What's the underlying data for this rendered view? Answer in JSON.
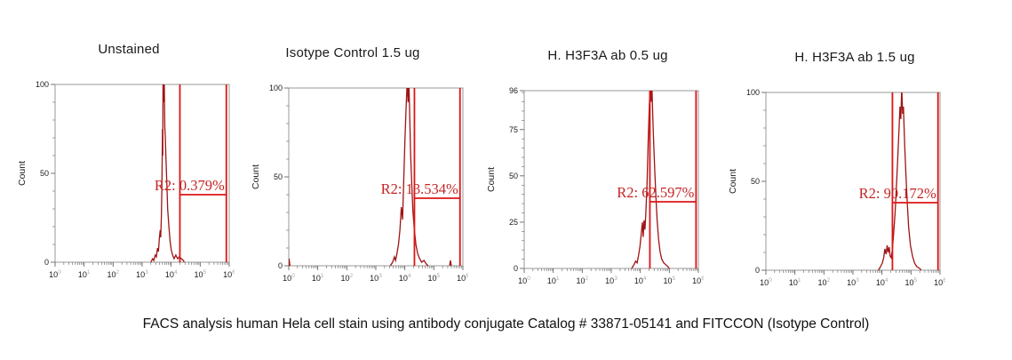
{
  "caption": "FACS analysis human Hela cell stain using antibody conjugate Catalog # 33871-05141 and FITCCON (Isotype Control)",
  "colors": {
    "curve": "#9e1414",
    "gate": "#dd1515",
    "gate_label": "#c62424",
    "frame": "#999999",
    "tick": "#666666",
    "tick_label": "#1a1a1a",
    "exponent": "#aaaaaa"
  },
  "chart_data": [
    {
      "type": "area",
      "title": "Unstained",
      "ylabel": "Count",
      "xscale": "log10",
      "xlim_exponents": [
        0,
        6
      ],
      "x_tick_exponents": [
        0,
        1,
        2,
        3,
        4,
        5,
        6
      ],
      "ylim": [
        0,
        100
      ],
      "yticks": [
        0,
        50,
        100
      ],
      "y_minor_step": 10,
      "grid": false,
      "segments": [
        [
          [
            3.3,
            0
          ],
          [
            3.36,
            2
          ],
          [
            3.4,
            1
          ],
          [
            3.45,
            4
          ],
          [
            3.49,
            3
          ],
          [
            3.53,
            8
          ],
          [
            3.56,
            6
          ],
          [
            3.59,
            13
          ],
          [
            3.62,
            18
          ],
          [
            3.64,
            14
          ],
          [
            3.66,
            25
          ],
          [
            3.68,
            42
          ],
          [
            3.7,
            75
          ],
          [
            3.71,
            60
          ],
          [
            3.72,
            104
          ],
          [
            3.74,
            90
          ],
          [
            3.76,
            104
          ],
          [
            3.78,
            76
          ],
          [
            3.8,
            70
          ],
          [
            3.82,
            58
          ],
          [
            3.85,
            44
          ],
          [
            3.88,
            30
          ],
          [
            3.92,
            20
          ],
          [
            3.96,
            12
          ],
          [
            4.0,
            7
          ],
          [
            4.05,
            4
          ],
          [
            4.1,
            2
          ],
          [
            4.16,
            4
          ],
          [
            4.22,
            2
          ],
          [
            4.28,
            3
          ],
          [
            4.35,
            2
          ],
          [
            4.42,
            1
          ],
          [
            4.45,
            0
          ]
        ]
      ],
      "gate": {
        "name": "R2",
        "label": "R2: 0.379%",
        "percent": 0.379,
        "x_from_exp": 4.3,
        "x_to_exp": 5.9,
        "line_y": 38
      }
    },
    {
      "type": "area",
      "title": "Isotype Control 1.5 ug",
      "ylabel": "Count",
      "xscale": "log10",
      "xlim_exponents": [
        0,
        6
      ],
      "x_tick_exponents": [
        0,
        1,
        2,
        3,
        4,
        5,
        6
      ],
      "ylim": [
        0,
        100
      ],
      "yticks": [
        0,
        50,
        100
      ],
      "y_minor_step": 10,
      "grid": false,
      "segments": [
        [
          [
            0.0,
            0
          ],
          [
            0.01,
            4
          ],
          [
            0.04,
            0
          ]
        ],
        [
          [
            3.5,
            0
          ],
          [
            3.58,
            2
          ],
          [
            3.64,
            5
          ],
          [
            3.68,
            3
          ],
          [
            3.73,
            7
          ],
          [
            3.78,
            12
          ],
          [
            3.83,
            20
          ],
          [
            3.88,
            33
          ],
          [
            3.92,
            26
          ],
          [
            3.96,
            48
          ],
          [
            4.0,
            70
          ],
          [
            4.04,
            88
          ],
          [
            4.08,
            104
          ],
          [
            4.11,
            92
          ],
          [
            4.14,
            104
          ],
          [
            4.17,
            83
          ],
          [
            4.2,
            62
          ],
          [
            4.24,
            45
          ],
          [
            4.28,
            30
          ],
          [
            4.33,
            20
          ],
          [
            4.38,
            12
          ],
          [
            4.44,
            7
          ],
          [
            4.51,
            4
          ],
          [
            4.58,
            2
          ],
          [
            4.66,
            3
          ],
          [
            4.74,
            1
          ],
          [
            4.8,
            0
          ]
        ],
        [
          [
            5.54,
            0
          ],
          [
            5.57,
            3
          ],
          [
            5.6,
            0
          ]
        ]
      ],
      "gate": {
        "name": "R2",
        "label": "R2: 13.534%",
        "percent": 13.534,
        "x_from_exp": 4.33,
        "x_to_exp": 5.9,
        "line_y": 38
      }
    },
    {
      "type": "area",
      "title": "H. H3F3A ab 0.5 ug",
      "ylabel": "Count",
      "xscale": "log10",
      "xlim_exponents": [
        0,
        6
      ],
      "x_tick_exponents": [
        0,
        1,
        2,
        3,
        4,
        5,
        6
      ],
      "ylim": [
        0,
        96
      ],
      "yticks": [
        0,
        25,
        50,
        75,
        96
      ],
      "y_minor_step": 5,
      "grid": false,
      "segments": [
        [
          [
            3.7,
            0
          ],
          [
            3.78,
            2
          ],
          [
            3.84,
            4
          ],
          [
            3.89,
            3
          ],
          [
            3.94,
            7
          ],
          [
            3.99,
            12
          ],
          [
            4.03,
            18
          ],
          [
            4.07,
            25
          ],
          [
            4.1,
            17
          ],
          [
            4.13,
            26
          ],
          [
            4.16,
            21
          ],
          [
            4.19,
            30
          ],
          [
            4.23,
            45
          ],
          [
            4.27,
            68
          ],
          [
            4.31,
            88
          ],
          [
            4.34,
            99
          ],
          [
            4.37,
            90
          ],
          [
            4.4,
            99
          ],
          [
            4.43,
            82
          ],
          [
            4.46,
            68
          ],
          [
            4.5,
            52
          ],
          [
            4.54,
            38
          ],
          [
            4.58,
            26
          ],
          [
            4.63,
            16
          ],
          [
            4.68,
            9
          ],
          [
            4.74,
            5
          ],
          [
            4.81,
            3
          ],
          [
            4.88,
            2
          ],
          [
            4.95,
            1
          ],
          [
            5.0,
            0
          ]
        ]
      ],
      "gate": {
        "name": "R2",
        "label": "R2: 62.597%",
        "percent": 62.597,
        "x_from_exp": 4.33,
        "x_to_exp": 5.92,
        "line_y": 36
      }
    },
    {
      "type": "area",
      "title": "H. H3F3A ab 1.5 ug",
      "ylabel": "Count",
      "xscale": "log10",
      "xlim_exponents": [
        0,
        6
      ],
      "x_tick_exponents": [
        0,
        1,
        2,
        3,
        4,
        5,
        6
      ],
      "ylim": [
        0,
        100
      ],
      "yticks": [
        0,
        50,
        100
      ],
      "y_minor_step": 10,
      "grid": false,
      "segments": [
        [
          [
            3.88,
            0
          ],
          [
            3.95,
            2
          ],
          [
            4.01,
            4
          ],
          [
            4.06,
            7
          ],
          [
            4.1,
            12
          ],
          [
            4.14,
            9
          ],
          [
            4.18,
            14
          ],
          [
            4.21,
            10
          ],
          [
            4.25,
            13
          ],
          [
            4.28,
            8
          ],
          [
            4.32,
            7
          ],
          [
            4.36,
            12
          ],
          [
            4.4,
            20
          ],
          [
            4.45,
            32
          ],
          [
            4.5,
            48
          ],
          [
            4.55,
            65
          ],
          [
            4.59,
            80
          ],
          [
            4.62,
            92
          ],
          [
            4.65,
            85
          ],
          [
            4.68,
            103
          ],
          [
            4.71,
            88
          ],
          [
            4.74,
            92
          ],
          [
            4.78,
            72
          ],
          [
            4.82,
            55
          ],
          [
            4.87,
            38
          ],
          [
            4.92,
            24
          ],
          [
            4.98,
            14
          ],
          [
            5.05,
            8
          ],
          [
            5.12,
            4
          ],
          [
            5.2,
            2
          ],
          [
            5.3,
            1
          ],
          [
            5.35,
            0
          ]
        ]
      ],
      "gate": {
        "name": "R2",
        "label": "R2: 90.172%",
        "percent": 90.172,
        "x_from_exp": 4.36,
        "x_to_exp": 5.93,
        "line_y": 38
      }
    }
  ]
}
